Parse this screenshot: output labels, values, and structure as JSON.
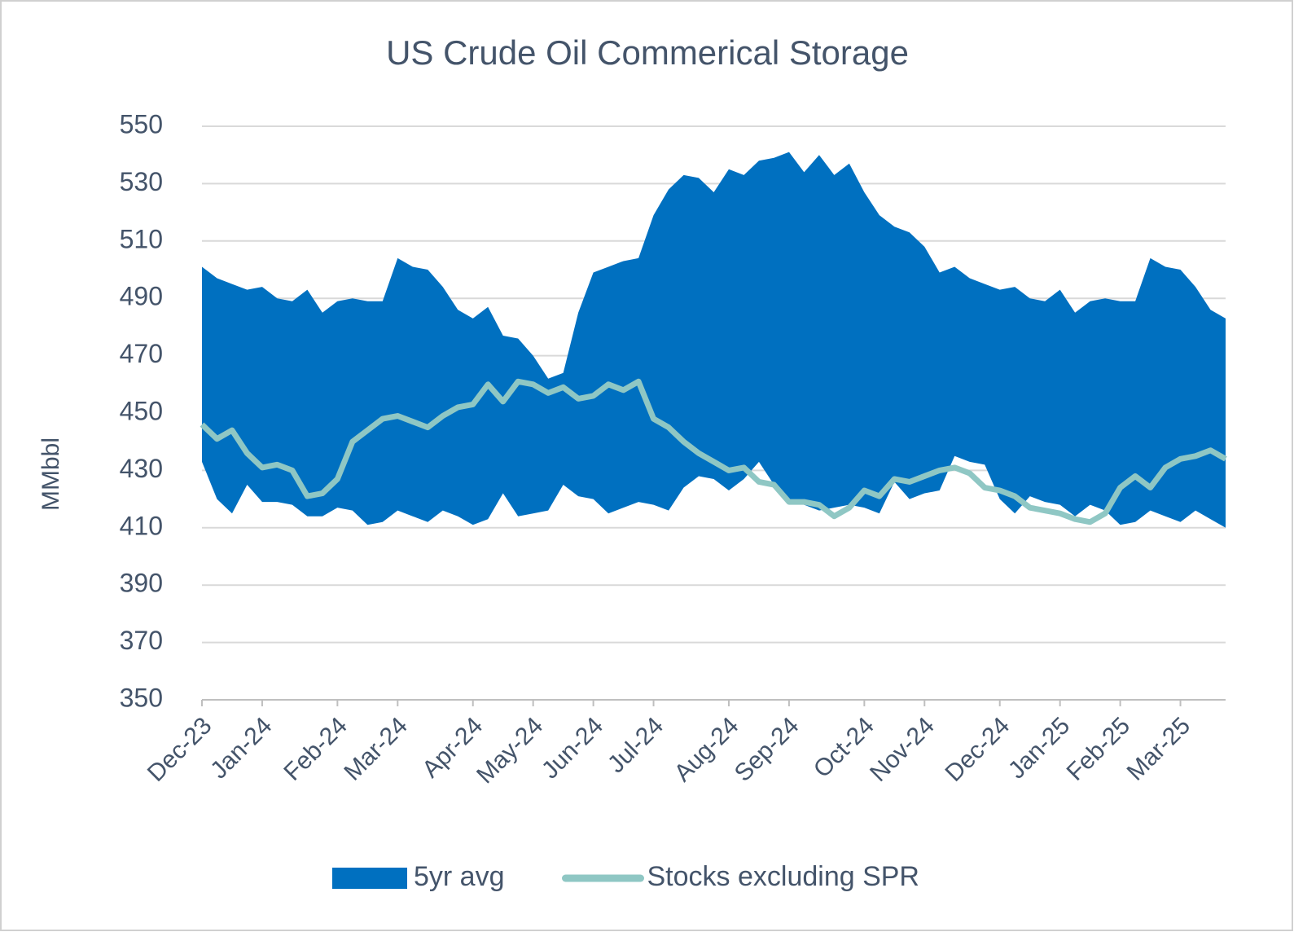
{
  "chart_data": {
    "type": "line",
    "title": "US Crude Oil Commerical Storage",
    "y_label": "MMbbl",
    "categories": [
      "Dec-23",
      null,
      null,
      null,
      "Jan-24",
      null,
      null,
      null,
      null,
      "Feb-24",
      null,
      null,
      null,
      "Mar-24",
      null,
      null,
      null,
      null,
      "Apr-24",
      null,
      null,
      null,
      "May-24",
      null,
      null,
      null,
      "Jun-24",
      null,
      null,
      null,
      "Jul-24",
      null,
      null,
      null,
      null,
      "Aug-24",
      null,
      null,
      null,
      "Sep-24",
      null,
      null,
      null,
      null,
      "Oct-24",
      null,
      null,
      null,
      "Nov-24",
      null,
      null,
      null,
      null,
      "Dec-24",
      null,
      null,
      null,
      "Jan-25",
      null,
      null,
      null,
      "Feb-25",
      null,
      null,
      null,
      "Mar-25",
      null,
      null,
      null
    ],
    "series": [
      {
        "name": "5yr avg",
        "type": "band",
        "color": "#0070c0",
        "high": [
          501,
          497,
          495,
          493,
          494,
          490,
          489,
          493,
          485,
          489,
          490,
          489,
          489,
          504,
          501,
          500,
          494,
          486,
          483,
          487,
          477,
          476,
          470,
          462,
          464,
          485,
          499,
          501,
          503,
          504,
          519,
          528,
          533,
          532,
          527,
          535,
          533,
          538,
          539,
          541,
          534,
          540,
          533,
          537,
          527,
          519,
          515,
          513,
          508,
          499,
          501,
          497,
          495,
          493,
          494,
          490,
          489,
          493,
          485,
          489,
          490,
          489,
          489,
          504,
          501,
          500,
          494,
          486,
          483
        ],
        "low": [
          433,
          420,
          415,
          425,
          419,
          419,
          418,
          414,
          414,
          417,
          416,
          411,
          412,
          416,
          414,
          412,
          416,
          414,
          411,
          413,
          422,
          414,
          415,
          416,
          425,
          421,
          420,
          415,
          417,
          419,
          418,
          416,
          424,
          428,
          427,
          423,
          427,
          433,
          425,
          420,
          418,
          416,
          417,
          418,
          417,
          415,
          426,
          420,
          422,
          423,
          435,
          433,
          432,
          420,
          415,
          421,
          419,
          418,
          414,
          418,
          416,
          411,
          412,
          416,
          414,
          412,
          416,
          413,
          410
        ]
      },
      {
        "name": "Stocks excluding SPR",
        "type": "line",
        "color": "#8fc7c4",
        "values": [
          446,
          441,
          444,
          436,
          431,
          432,
          430,
          421,
          422,
          427,
          440,
          444,
          448,
          449,
          447,
          445,
          449,
          452,
          453,
          460,
          454,
          461,
          460,
          457,
          459,
          455,
          456,
          460,
          458,
          461,
          448,
          445,
          440,
          436,
          433,
          430,
          431,
          426,
          425,
          419,
          419,
          418,
          414,
          417,
          423,
          421,
          427,
          426,
          428,
          430,
          431,
          429,
          424,
          423,
          421,
          417,
          416,
          415,
          413,
          412,
          415,
          424,
          428,
          424,
          431,
          434,
          435,
          437,
          434
        ]
      }
    ],
    "ylim": [
      350,
      550
    ],
    "yticks": [
      350,
      370,
      390,
      410,
      430,
      450,
      470,
      490,
      510,
      530,
      550
    ],
    "grid": true,
    "legend": "bottom"
  }
}
